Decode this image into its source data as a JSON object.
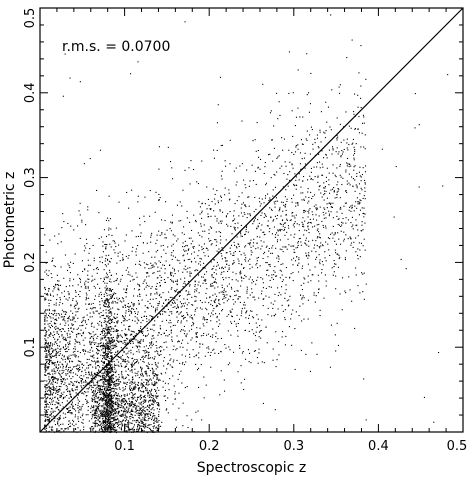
{
  "chart_data": {
    "type": "scatter",
    "title": "",
    "xlabel": "Spectroscopic z",
    "ylabel": "Photometric z",
    "xlim": [
      0,
      0.5
    ],
    "ylim": [
      0,
      0.5
    ],
    "x_ticks": [
      0.1,
      0.2,
      0.3,
      0.4,
      0.5
    ],
    "x_tick_labels": [
      "0.1",
      "0.2",
      "0.3",
      "0.4",
      "0.5"
    ],
    "y_ticks": [
      0.1,
      0.2,
      0.3,
      0.4,
      0.5
    ],
    "y_tick_labels": [
      "0.1",
      "0.2",
      "0.3",
      "0.4",
      "0.5"
    ],
    "annotation": "r.m.s. = 0.0700",
    "reference_line": {
      "label": "",
      "x": [
        0,
        0.5
      ],
      "y": [
        0,
        0.5
      ]
    },
    "grid": false,
    "legend": "none",
    "point_color": "#000000",
    "point_count_estimate": 6000,
    "distribution_summary": {
      "core_trend": [
        [
          0.02,
          0.07
        ],
        [
          0.05,
          0.09
        ],
        [
          0.08,
          0.11
        ],
        [
          0.12,
          0.13
        ],
        [
          0.16,
          0.16
        ],
        [
          0.2,
          0.18
        ],
        [
          0.25,
          0.22
        ],
        [
          0.3,
          0.25
        ],
        [
          0.35,
          0.28
        ]
      ],
      "rms": 0.07,
      "notable_structures": [
        {
          "description": "dense vertical stripe",
          "x": 0.08,
          "y_range": [
            0.0,
            0.25
          ]
        },
        {
          "description": "dense clump",
          "x_range": [
            0.07,
            0.13
          ],
          "y_range": [
            0.0,
            0.08
          ]
        }
      ]
    }
  }
}
